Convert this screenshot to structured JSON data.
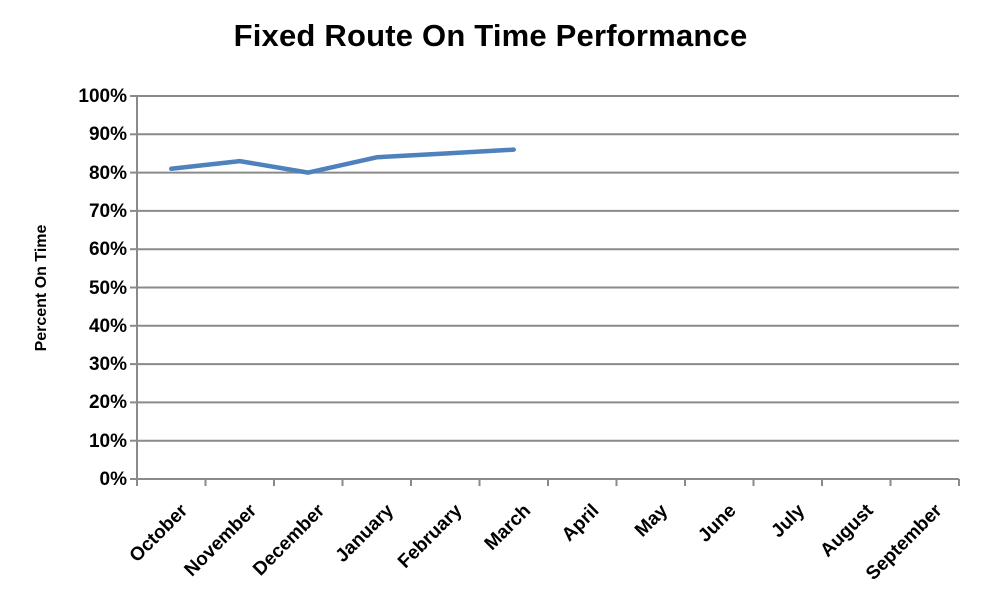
{
  "chart_data": {
    "type": "line",
    "title": "Fixed Route On Time Performance",
    "xlabel": "",
    "ylabel": "Percent On Time",
    "categories": [
      "October",
      "November",
      "December",
      "January",
      "February",
      "March",
      "April",
      "May",
      "June",
      "July",
      "August",
      "September"
    ],
    "values": [
      81,
      83,
      80,
      84,
      85,
      86,
      null,
      null,
      null,
      null,
      null,
      null
    ],
    "ylim": [
      0,
      100
    ],
    "ytick_step": 10,
    "ytick_labels": [
      "0%",
      "10%",
      "20%",
      "30%",
      "40%",
      "50%",
      "60%",
      "70%",
      "80%",
      "90%",
      "100%"
    ],
    "grid": true,
    "legend": "none",
    "line_color": "#4F81BD",
    "gridline_color": "#8A8A8A",
    "axis_color": "#8A8A8A",
    "text_color": "#000000",
    "background": "#FFFFFF"
  }
}
